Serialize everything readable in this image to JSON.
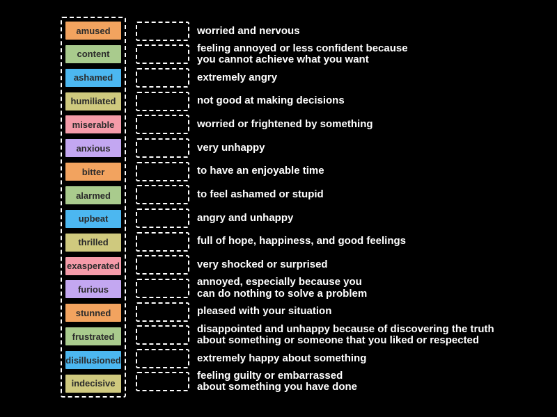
{
  "background_color": "#000000",
  "panel_border_color": "#ffffff",
  "slot_border_color": "#ffffff",
  "definition_text_color": "#ffffff",
  "tile_text_color": "#2b2b2b",
  "palette": {
    "orange": "#f2a35f",
    "green": "#a9cb8d",
    "blue": "#4cb7f0",
    "khaki": "#cfc97e",
    "pink": "#f59ba9",
    "purple": "#c3a7f1"
  },
  "rows": [
    {
      "term": "amused",
      "color": "#f2a35f",
      "definition": [
        "worried and nervous"
      ]
    },
    {
      "term": "content",
      "color": "#a9cb8d",
      "definition": [
        "feeling annoyed or less confident because",
        "you cannot achieve what you want"
      ]
    },
    {
      "term": "ashamed",
      "color": "#4cb7f0",
      "definition": [
        "extremely angry"
      ]
    },
    {
      "term": "humiliated",
      "color": "#cfc97e",
      "definition": [
        "not good at making decisions"
      ]
    },
    {
      "term": "miserable",
      "color": "#f59ba9",
      "definition": [
        "worried or frightened by something"
      ]
    },
    {
      "term": "anxious",
      "color": "#c3a7f1",
      "definition": [
        "very unhappy"
      ]
    },
    {
      "term": "bitter",
      "color": "#f2a35f",
      "definition": [
        "to have an enjoyable time"
      ]
    },
    {
      "term": "alarmed",
      "color": "#a9cb8d",
      "definition": [
        "to feel ashamed or stupid"
      ]
    },
    {
      "term": "upbeat",
      "color": "#4cb7f0",
      "definition": [
        "angry and unhappy"
      ]
    },
    {
      "term": "thrilled",
      "color": "#cfc97e",
      "definition": [
        "full of hope, happiness, and good feelings"
      ]
    },
    {
      "term": "exasperated",
      "color": "#f59ba9",
      "definition": [
        "very shocked or surprised"
      ]
    },
    {
      "term": "furious",
      "color": "#c3a7f1",
      "definition": [
        "annoyed, especially because you",
        "can do nothing to solve a problem"
      ]
    },
    {
      "term": "stunned",
      "color": "#f2a35f",
      "definition": [
        "pleased with your situation"
      ]
    },
    {
      "term": "frustrated",
      "color": "#a9cb8d",
      "definition": [
        "disappointed and unhappy because of discovering the truth",
        "about something or someone that you liked or respected"
      ]
    },
    {
      "term": "disillusioned",
      "color": "#4cb7f0",
      "definition": [
        "extremely happy about something"
      ]
    },
    {
      "term": "indecisive",
      "color": "#cfc97e",
      "definition": [
        "feeling guilty or embarrassed",
        "about something you have done"
      ]
    }
  ]
}
